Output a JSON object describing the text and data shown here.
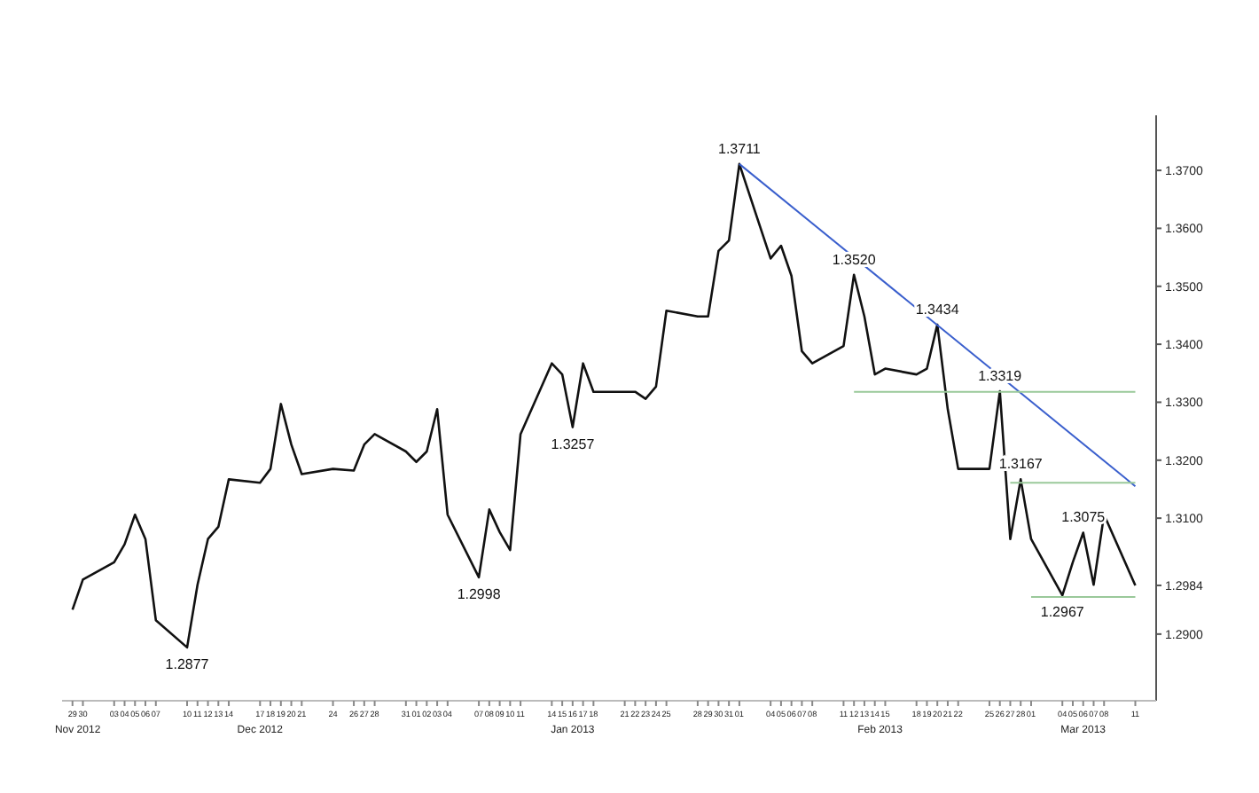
{
  "chart_data": {
    "type": "line",
    "x": [
      "2012-11-29",
      "2012-11-30",
      "2012-12-03",
      "2012-12-04",
      "2012-12-05",
      "2012-12-06",
      "2012-12-07",
      "2012-12-10",
      "2012-12-11",
      "2012-12-12",
      "2012-12-13",
      "2012-12-14",
      "2012-12-17",
      "2012-12-18",
      "2012-12-19",
      "2012-12-20",
      "2012-12-21",
      "2012-12-24",
      "2012-12-26",
      "2012-12-27",
      "2012-12-28",
      "2012-12-31",
      "2013-01-01",
      "2013-01-02",
      "2013-01-03",
      "2013-01-04",
      "2013-01-07",
      "2013-01-08",
      "2013-01-09",
      "2013-01-10",
      "2013-01-11",
      "2013-01-14",
      "2013-01-15",
      "2013-01-16",
      "2013-01-17",
      "2013-01-18",
      "2013-01-21",
      "2013-01-22",
      "2013-01-23",
      "2013-01-24",
      "2013-01-25",
      "2013-01-28",
      "2013-01-29",
      "2013-01-30",
      "2013-01-31",
      "2013-02-01",
      "2013-02-04",
      "2013-02-05",
      "2013-02-06",
      "2013-02-07",
      "2013-02-08",
      "2013-02-11",
      "2013-02-12",
      "2013-02-13",
      "2013-02-14",
      "2013-02-15",
      "2013-02-18",
      "2013-02-19",
      "2013-02-20",
      "2013-02-21",
      "2013-02-22",
      "2013-02-25",
      "2013-02-26",
      "2013-02-27",
      "2013-02-28",
      "2013-03-01",
      "2013-03-04",
      "2013-03-05",
      "2013-03-06",
      "2013-03-07",
      "2013-03-08",
      "2013-03-11"
    ],
    "series": [
      {
        "color": "#111111",
        "values": [
          1.2942,
          1.2994,
          1.3024,
          1.3055,
          1.3106,
          1.3064,
          1.2924,
          1.2877,
          1.2985,
          1.3064,
          1.3085,
          1.3167,
          1.3161,
          1.3185,
          1.3297,
          1.3227,
          1.3176,
          1.3185,
          1.3182,
          1.3227,
          1.3245,
          1.3215,
          1.3197,
          1.3215,
          1.3288,
          1.3106,
          1.2998,
          1.3115,
          1.3076,
          1.3045,
          1.3245,
          1.3367,
          1.3348,
          1.3257,
          1.3367,
          1.3318,
          1.3318,
          1.3318,
          1.3306,
          1.3327,
          1.3458,
          1.3448,
          1.3448,
          1.3561,
          1.3579,
          1.3711,
          1.3548,
          1.357,
          1.3518,
          1.3388,
          1.3367,
          1.3397,
          1.352,
          1.3448,
          1.3348,
          1.3358,
          1.3348,
          1.3358,
          1.3434,
          1.3288,
          1.3185,
          1.3185,
          1.3319,
          1.3064,
          1.3167,
          1.3064,
          1.2967,
          1.3024,
          1.3075,
          1.2985,
          1.3106,
          1.2984
        ]
      },
      {
        "type": "line",
        "color": "#3a5fcd",
        "x": [
          "2013-02-01",
          "2013-03-11"
        ],
        "values": [
          1.3711,
          1.3155
        ]
      },
      {
        "type": "line",
        "color": "#9ac99a",
        "x": [
          "2013-02-12",
          "2013-03-11"
        ],
        "values": [
          1.3318,
          1.3318
        ]
      },
      {
        "type": "line",
        "color": "#9ac99a",
        "x": [
          "2013-02-27",
          "2013-03-11"
        ],
        "values": [
          1.3161,
          1.3161
        ]
      },
      {
        "type": "line",
        "color": "#9ac99a",
        "x": [
          "2013-03-01",
          "2013-03-11"
        ],
        "values": [
          1.2964,
          1.2964
        ]
      }
    ],
    "ylim": [
      1.2785,
      1.3795
    ],
    "yticks": [
      {
        "value": 1.29,
        "label": "1.2900"
      },
      {
        "value": 1.2984,
        "label": "1.2984"
      },
      {
        "value": 1.31,
        "label": "1.3100"
      },
      {
        "value": 1.32,
        "label": "1.3200"
      },
      {
        "value": 1.33,
        "label": "1.3300"
      },
      {
        "value": 1.34,
        "label": "1.3400"
      },
      {
        "value": 1.35,
        "label": "1.3500"
      },
      {
        "value": 1.36,
        "label": "1.3600"
      },
      {
        "value": 1.37,
        "label": "1.3700"
      }
    ],
    "xticks": [
      {
        "value": "2012-11-29",
        "label": "29"
      },
      {
        "value": "2012-11-30",
        "label": "30"
      },
      {
        "value": "2012-12-03",
        "label": "03"
      },
      {
        "value": "2012-12-04",
        "label": "04"
      },
      {
        "value": "2012-12-05",
        "label": "05"
      },
      {
        "value": "2012-12-06",
        "label": "06"
      },
      {
        "value": "2012-12-07",
        "label": "07"
      },
      {
        "value": "2012-12-10",
        "label": "10"
      },
      {
        "value": "2012-12-11",
        "label": "11"
      },
      {
        "value": "2012-12-12",
        "label": "12"
      },
      {
        "value": "2012-12-13",
        "label": "13"
      },
      {
        "value": "2012-12-14",
        "label": "14"
      },
      {
        "value": "2012-12-17",
        "label": "17"
      },
      {
        "value": "2012-12-18",
        "label": "18"
      },
      {
        "value": "2012-12-19",
        "label": "19"
      },
      {
        "value": "2012-12-20",
        "label": "20"
      },
      {
        "value": "2012-12-21",
        "label": "21"
      },
      {
        "value": "2012-12-24",
        "label": "24"
      },
      {
        "value": "2012-12-26",
        "label": "26"
      },
      {
        "value": "2012-12-27",
        "label": "27"
      },
      {
        "value": "2012-12-28",
        "label": "28"
      },
      {
        "value": "2012-12-31",
        "label": "31"
      },
      {
        "value": "2013-01-01",
        "label": "01"
      },
      {
        "value": "2013-01-02",
        "label": "02"
      },
      {
        "value": "2013-01-03",
        "label": "03"
      },
      {
        "value": "2013-01-04",
        "label": "04"
      },
      {
        "value": "2013-01-07",
        "label": "07"
      },
      {
        "value": "2013-01-08",
        "label": "08"
      },
      {
        "value": "2013-01-09",
        "label": "09"
      },
      {
        "value": "2013-01-10",
        "label": "10"
      },
      {
        "value": "2013-01-11",
        "label": "11"
      },
      {
        "value": "2013-01-14",
        "label": "14"
      },
      {
        "value": "2013-01-15",
        "label": "15"
      },
      {
        "value": "2013-01-16",
        "label": "16"
      },
      {
        "value": "2013-01-17",
        "label": "17"
      },
      {
        "value": "2013-01-18",
        "label": "18"
      },
      {
        "value": "2013-01-21",
        "label": "21"
      },
      {
        "value": "2013-01-22",
        "label": "22"
      },
      {
        "value": "2013-01-23",
        "label": "23"
      },
      {
        "value": "2013-01-24",
        "label": "24"
      },
      {
        "value": "2013-01-25",
        "label": "25"
      },
      {
        "value": "2013-01-28",
        "label": "28"
      },
      {
        "value": "2013-01-29",
        "label": "29"
      },
      {
        "value": "2013-01-30",
        "label": "30"
      },
      {
        "value": "2013-01-31",
        "label": "31"
      },
      {
        "value": "2013-02-01",
        "label": "01"
      },
      {
        "value": "2013-02-04",
        "label": "04"
      },
      {
        "value": "2013-02-05",
        "label": "05"
      },
      {
        "value": "2013-02-06",
        "label": "06"
      },
      {
        "value": "2013-02-07",
        "label": "07"
      },
      {
        "value": "2013-02-08",
        "label": "08"
      },
      {
        "value": "2013-02-11",
        "label": "11"
      },
      {
        "value": "2013-02-12",
        "label": "12"
      },
      {
        "value": "2013-02-13",
        "label": "13"
      },
      {
        "value": "2013-02-14",
        "label": "14"
      },
      {
        "value": "2013-02-15",
        "label": "15"
      },
      {
        "value": "2013-02-18",
        "label": "18"
      },
      {
        "value": "2013-02-19",
        "label": "19"
      },
      {
        "value": "2013-02-20",
        "label": "20"
      },
      {
        "value": "2013-02-21",
        "label": "21"
      },
      {
        "value": "2013-02-22",
        "label": "22"
      },
      {
        "value": "2013-02-25",
        "label": "25"
      },
      {
        "value": "2013-02-26",
        "label": "26"
      },
      {
        "value": "2013-02-27",
        "label": "27"
      },
      {
        "value": "2013-02-28",
        "label": "28"
      },
      {
        "value": "2013-03-01",
        "label": "01"
      },
      {
        "value": "2013-03-04",
        "label": "04"
      },
      {
        "value": "2013-03-05",
        "label": "05"
      },
      {
        "value": "2013-03-06",
        "label": "06"
      },
      {
        "value": "2013-03-07",
        "label": "07"
      },
      {
        "value": "2013-03-08",
        "label": "08"
      },
      {
        "value": "2013-03-11",
        "label": "11"
      }
    ],
    "annotations": [
      {
        "text": "1.2877",
        "x": "2012-12-10",
        "y": 1.2877
      },
      {
        "text": "1.2998",
        "x": "2013-01-07",
        "y": 1.2998
      },
      {
        "text": "1.3257",
        "x": "2013-01-16",
        "y": 1.3257
      },
      {
        "text": "1.3711",
        "x": "2013-02-01",
        "y": 1.3711
      },
      {
        "text": "1.3520",
        "x": "2013-02-12",
        "y": 1.352
      },
      {
        "text": "1.3434",
        "x": "2013-02-20",
        "y": 1.3434
      },
      {
        "text": "1.3319",
        "x": "2013-02-26",
        "y": 1.3319
      },
      {
        "text": "1.3167",
        "x": "2013-02-28",
        "y": 1.3167
      },
      {
        "text": "1.3075",
        "x": "2013-03-06",
        "y": 1.3075
      },
      {
        "text": "1.2967",
        "x": "2013-03-04",
        "y": 1.2967
      },
      "Nov 2012",
      "Dec 2012",
      "Jan 2013",
      "Feb 2013",
      "Mar 2013"
    ],
    "xlim": [
      "2012-11-28",
      "2013-03-13"
    ],
    "grid": false,
    "marker": "none",
    "line_style": "solid"
  }
}
